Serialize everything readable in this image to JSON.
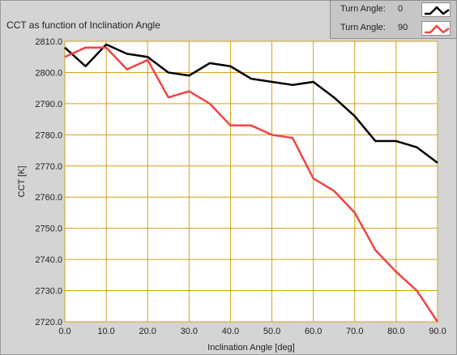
{
  "chart_data": {
    "type": "line",
    "title": "CCT as function of Inclination Angle",
    "xlabel": "Inclination Angle [deg]",
    "ylabel": "CCT [K]",
    "xlim": [
      0,
      90
    ],
    "ylim": [
      2720,
      2810
    ],
    "grid": true,
    "legend_position": "top-right",
    "x_ticks": [
      "0.0",
      "10.0",
      "20.0",
      "30.0",
      "40.0",
      "50.0",
      "60.0",
      "70.0",
      "80.0",
      "90.0"
    ],
    "x_tick_values": [
      0,
      10,
      20,
      30,
      40,
      50,
      60,
      70,
      80,
      90
    ],
    "y_ticks": [
      "2720.0",
      "2730.0",
      "2740.0",
      "2750.0",
      "2760.0",
      "2770.0",
      "2780.0",
      "2790.0",
      "2800.0",
      "2810.0"
    ],
    "y_tick_values": [
      2720,
      2730,
      2740,
      2750,
      2760,
      2770,
      2780,
      2790,
      2800,
      2810
    ],
    "x": [
      0,
      5,
      10,
      15,
      20,
      25,
      30,
      35,
      40,
      45,
      50,
      55,
      60,
      65,
      70,
      75,
      80,
      85,
      90
    ],
    "series": [
      {
        "legend_label": "Turn Angle:",
        "legend_value": "0",
        "color": "#000000",
        "values": [
          2808,
          2802,
          2809,
          2806,
          2805,
          2800,
          2799,
          2803,
          2802,
          2798,
          2797,
          2796,
          2797,
          2792,
          2786,
          2778,
          2778,
          2776,
          2771
        ]
      },
      {
        "legend_label": "Turn Angle:",
        "legend_value": "90",
        "color": "#ee4444",
        "values": [
          2805,
          2808,
          2808,
          2801,
          2804,
          2792,
          2794,
          2790,
          2783,
          2783,
          2780,
          2779,
          2766,
          2762,
          2755,
          2743,
          2736,
          2730,
          2720
        ]
      }
    ]
  },
  "colors": {
    "background": "#d4d4d4",
    "plot_background": "#ffffff",
    "grid": "#d4a017"
  }
}
